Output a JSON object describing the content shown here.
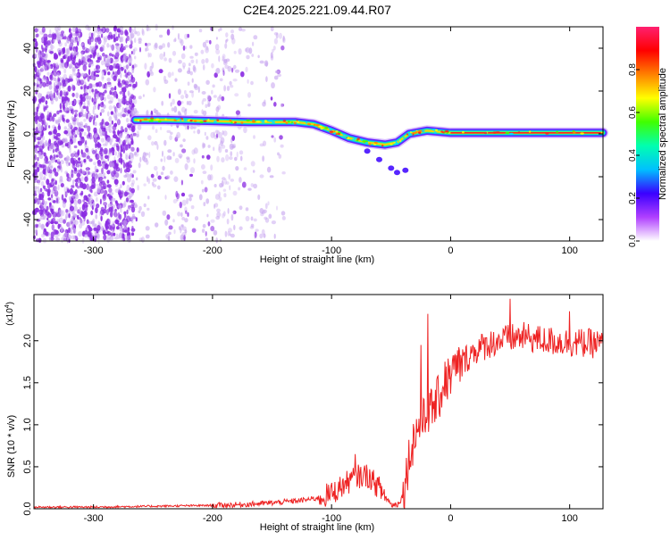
{
  "title": "C2E4.2025.221.09.44.R07",
  "colors": {
    "snr_line": "#ee2222",
    "dot_purple": "#8a2be2",
    "dot_light": "#c9a8f0",
    "frame": "#000000",
    "background": "#ffffff"
  },
  "chart_data": [
    {
      "type": "heatmap",
      "name": "spectrogram",
      "xlabel": "Height of straight line (km)",
      "ylabel": "Frequency (Hz)",
      "xlim": [
        -350,
        128
      ],
      "ylim": [
        -50,
        50
      ],
      "xticks": [
        -300,
        -200,
        -100,
        0,
        100
      ],
      "yticks": [
        -40,
        -20,
        0,
        20,
        40
      ],
      "colorbar": {
        "label": "Normalized spectral amplitude",
        "range": [
          0,
          1
        ],
        "ticks": [
          "0.0",
          "0.2",
          "0.4",
          "0.6",
          "0.8"
        ],
        "tick_values": [
          0.0,
          0.2,
          0.4,
          0.6,
          0.8
        ],
        "colors": [
          "#ffffff",
          "#b040ff",
          "#3a00ff",
          "#00c0ff",
          "#00ffb0",
          "#40ff00",
          "#ffff00",
          "#ff8000",
          "#ff0000",
          "#ff2070"
        ]
      },
      "noise_regions": [
        {
          "x_range": [
            -350,
            -265
          ],
          "density": "high"
        },
        {
          "x_range": [
            -265,
            -180
          ],
          "density": "medium"
        },
        {
          "x_range": [
            -180,
            -140
          ],
          "density": "low"
        }
      ],
      "carrier_track": [
        {
          "x": -265,
          "y": 6.5
        },
        {
          "x": -240,
          "y": 6.5
        },
        {
          "x": -200,
          "y": 6.0
        },
        {
          "x": -170,
          "y": 5.5
        },
        {
          "x": -150,
          "y": 5.5
        },
        {
          "x": -130,
          "y": 5.5
        },
        {
          "x": -115,
          "y": 4.5
        },
        {
          "x": -100,
          "y": 1.5
        },
        {
          "x": -85,
          "y": -2.0
        },
        {
          "x": -70,
          "y": -4.0
        },
        {
          "x": -55,
          "y": -5.0
        },
        {
          "x": -45,
          "y": -4.0
        },
        {
          "x": -35,
          "y": 0.0
        },
        {
          "x": -20,
          "y": 1.5
        },
        {
          "x": 0,
          "y": 0.5
        },
        {
          "x": 50,
          "y": 0.5
        },
        {
          "x": 128,
          "y": 0.5
        }
      ]
    },
    {
      "type": "line",
      "name": "snr",
      "xlabel": "Height of straight line (km)",
      "ylabel": "SNR (10 * v/v)",
      "y_multiplier_label": "(x10",
      "y_multiplier_exp": "4",
      "y_multiplier_close": ")",
      "xlim": [
        -350,
        128
      ],
      "ylim": [
        0,
        2.55
      ],
      "xticks": [
        -300,
        -200,
        -100,
        0,
        100
      ],
      "yticks": [
        0.0,
        0.5,
        1.0,
        1.5,
        2.0
      ],
      "ytick_labels": [
        "0.0",
        "0.5",
        "1.0",
        "1.5",
        "2.0"
      ],
      "series": [
        {
          "x": [
            -350,
            -300,
            -250,
            -200,
            -175,
            -150,
            -125,
            -110,
            -100,
            -90,
            -80,
            -70,
            -60,
            -50,
            -45,
            -40,
            -35,
            -30,
            -25,
            -20,
            -15,
            -10,
            -5,
            0,
            10,
            20,
            30,
            40,
            60,
            80,
            100,
            128
          ],
          "values": [
            0.02,
            0.02,
            0.03,
            0.04,
            0.05,
            0.07,
            0.1,
            0.13,
            0.18,
            0.28,
            0.38,
            0.4,
            0.25,
            0.05,
            0.05,
            0.15,
            0.6,
            0.9,
            1.0,
            1.1,
            1.2,
            1.32,
            1.48,
            1.6,
            1.75,
            1.88,
            1.95,
            2.0,
            2.05,
            2.0,
            1.98,
            1.96
          ],
          "spikes": [
            {
              "x": -25,
              "y": 1.95
            },
            {
              "x": -19,
              "y": 2.32
            },
            {
              "x": -5,
              "y": 1.75
            },
            {
              "x": 50,
              "y": 2.5
            },
            {
              "x": 100,
              "y": 2.35
            },
            {
              "x": -80,
              "y": 0.65
            }
          ]
        }
      ]
    }
  ]
}
